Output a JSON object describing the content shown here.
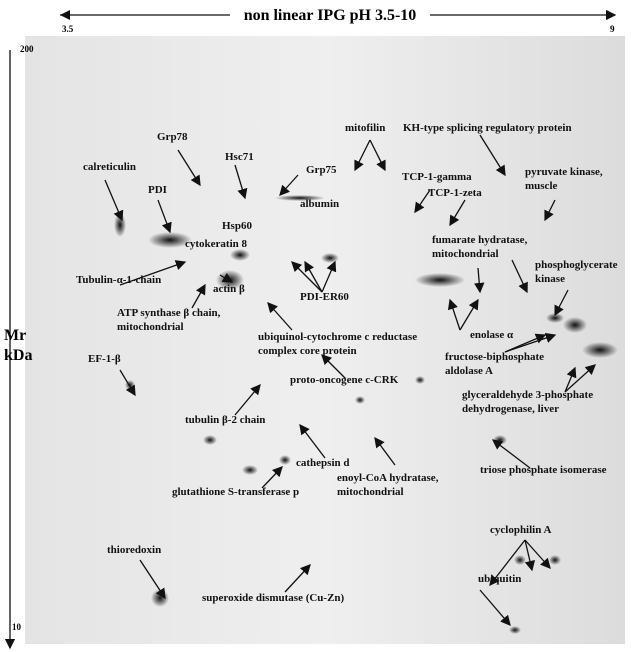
{
  "header": {
    "title": "non linear IPG pH 3.5-10",
    "ph_low": "3.5",
    "ph_high": "9"
  },
  "y_axis": {
    "label_lines": [
      "Mr",
      "kDa"
    ],
    "top": "200",
    "bottom": "10"
  },
  "labels": [
    {
      "lines": [
        "calreticulin"
      ]
    },
    {
      "lines": [
        "Grp78"
      ]
    },
    {
      "lines": [
        "PDI"
      ]
    },
    {
      "lines": [
        "Hsc71"
      ]
    },
    {
      "lines": [
        "Grp75"
      ]
    },
    {
      "lines": [
        "mitofilin"
      ]
    },
    {
      "lines": [
        "KH-type splicing regulatory protein"
      ]
    },
    {
      "lines": [
        "albumin"
      ]
    },
    {
      "lines": [
        "TCP-1-gamma"
      ]
    },
    {
      "lines": [
        "TCP-1-zeta"
      ]
    },
    {
      "lines": [
        "pyruvate kinase,",
        "muscle"
      ]
    },
    {
      "lines": [
        "Hsp60"
      ]
    },
    {
      "lines": [
        "cytokeratin 8"
      ]
    },
    {
      "lines": [
        "Tubulin-α-1-chain"
      ]
    },
    {
      "lines": [
        "actin β"
      ]
    },
    {
      "lines": [
        "PDI-ER60"
      ]
    },
    {
      "lines": [
        "fumarate hydratase,",
        "mitochondrial"
      ]
    },
    {
      "lines": [
        "phosphoglycerate",
        "kinase"
      ]
    },
    {
      "lines": [
        "ATP synthase β chain,",
        "mitochondrial"
      ]
    },
    {
      "lines": [
        "ubiquinol-cytochrome c reductase",
        "complex core protein"
      ]
    },
    {
      "lines": [
        "enolase α"
      ]
    },
    {
      "lines": [
        "fructose-biphosphate",
        "aldolase A"
      ]
    },
    {
      "lines": [
        "EF-1-β"
      ]
    },
    {
      "lines": [
        "proto-oncogene c-CRK"
      ]
    },
    {
      "lines": [
        "glyceraldehyde 3-phosphate",
        "dehydrogenase, liver"
      ]
    },
    {
      "lines": [
        "tubulin β-2 chain"
      ]
    },
    {
      "lines": [
        "cathepsin d"
      ]
    },
    {
      "lines": [
        "enoyl-CoA hydratase,",
        "mitochondrial"
      ]
    },
    {
      "lines": [
        "triose phosphate isomerase"
      ]
    },
    {
      "lines": [
        "glutathione S-transferase p"
      ]
    },
    {
      "lines": [
        "cyclophilin A"
      ]
    },
    {
      "lines": [
        "thioredoxin"
      ]
    },
    {
      "lines": [
        "ubiquitin"
      ]
    },
    {
      "lines": [
        "superoxide dismutase (Cu-Zn)"
      ]
    }
  ]
}
